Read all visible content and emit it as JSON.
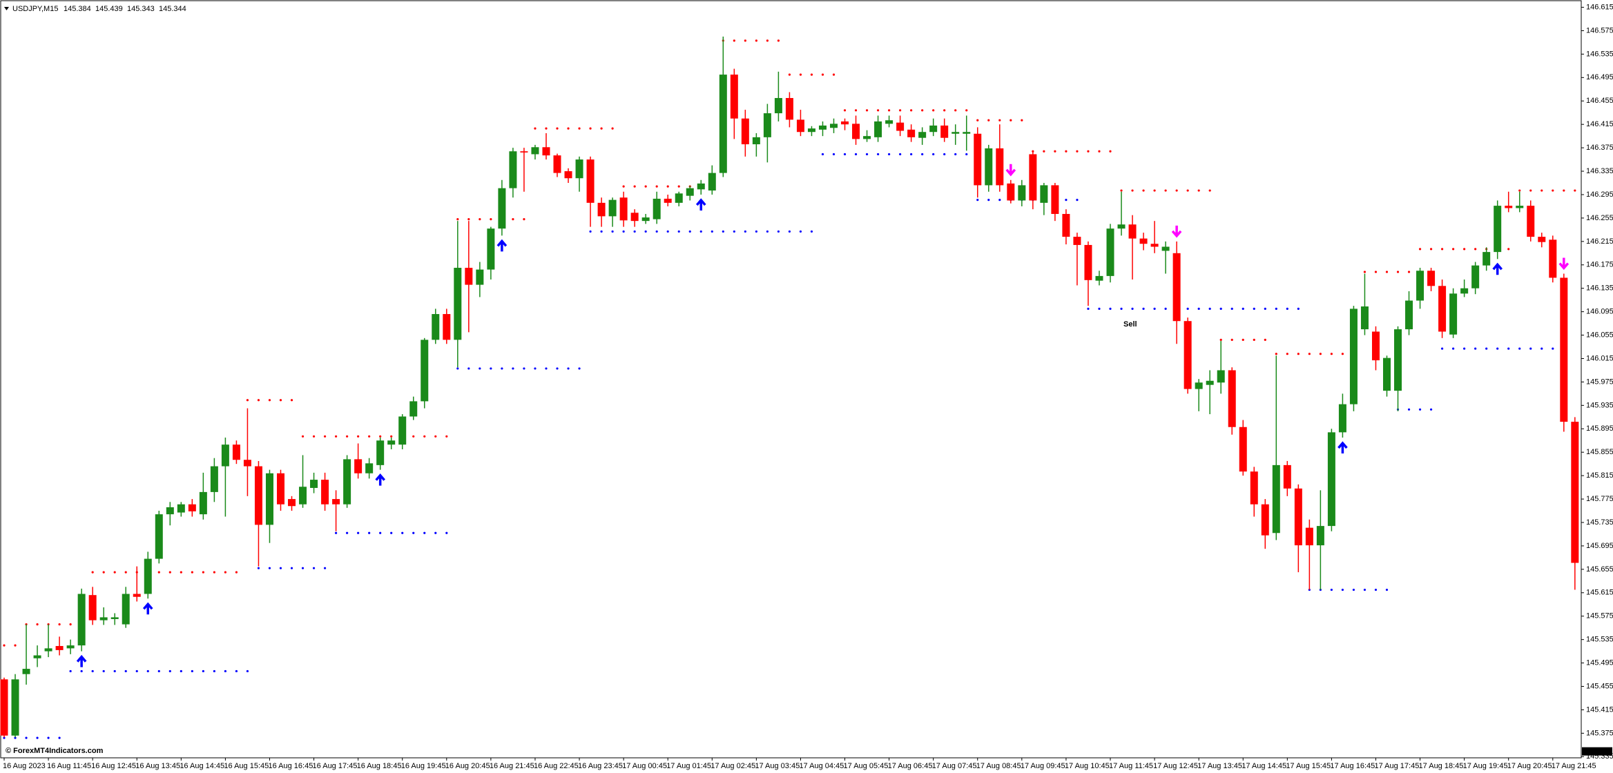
{
  "chart_data": {
    "type": "candlestick",
    "title": "USDJPY,M15",
    "quote": [
      145.384,
      145.439,
      145.343,
      145.344
    ],
    "up_color": "#1a8a1a",
    "down_color": "#ff0000",
    "ylim": [
      145.333,
      146.618
    ],
    "yticks": [
      145.335,
      145.375,
      145.415,
      145.455,
      145.495,
      145.535,
      145.575,
      145.615,
      145.655,
      145.695,
      145.735,
      145.775,
      145.815,
      145.855,
      145.895,
      145.935,
      145.975,
      146.015,
      146.055,
      146.095,
      146.135,
      146.175,
      146.215,
      146.255,
      146.295,
      146.335,
      146.375,
      146.415,
      146.455,
      146.495,
      146.535,
      146.575,
      146.615
    ],
    "xticks": [
      {
        "value": 0,
        "label": "16 Aug 2023"
      },
      {
        "value": 4,
        "label": "16 Aug 11:45"
      },
      {
        "value": 8,
        "label": "16 Aug 12:45"
      },
      {
        "value": 12,
        "label": "16 Aug 13:45"
      },
      {
        "value": 16,
        "label": "16 Aug 14:45"
      },
      {
        "value": 20,
        "label": "16 Aug 15:45"
      },
      {
        "value": 24,
        "label": "16 Aug 16:45"
      },
      {
        "value": 28,
        "label": "16 Aug 17:45"
      },
      {
        "value": 32,
        "label": "16 Aug 18:45"
      },
      {
        "value": 36,
        "label": "16 Aug 19:45"
      },
      {
        "value": 40,
        "label": "16 Aug 20:45"
      },
      {
        "value": 44,
        "label": "16 Aug 21:45"
      },
      {
        "value": 48,
        "label": "16 Aug 22:45"
      },
      {
        "value": 52,
        "label": "16 Aug 23:45"
      },
      {
        "value": 56,
        "label": "17 Aug 00:45"
      },
      {
        "value": 60,
        "label": "17 Aug 01:45"
      },
      {
        "value": 64,
        "label": "17 Aug 02:45"
      },
      {
        "value": 68,
        "label": "17 Aug 03:45"
      },
      {
        "value": 72,
        "label": "17 Aug 04:45"
      },
      {
        "value": 76,
        "label": "17 Aug 05:45"
      },
      {
        "value": 80,
        "label": "17 Aug 06:45"
      },
      {
        "value": 84,
        "label": "17 Aug 07:45"
      },
      {
        "value": 88,
        "label": "17 Aug 08:45"
      },
      {
        "value": 92,
        "label": "17 Aug 09:45"
      },
      {
        "value": 96,
        "label": "17 Aug 10:45"
      },
      {
        "value": 100,
        "label": "17 Aug 11:45"
      },
      {
        "value": 104,
        "label": "17 Aug 12:45"
      },
      {
        "value": 108,
        "label": "17 Aug 13:45"
      },
      {
        "value": 112,
        "label": "17 Aug 14:45"
      },
      {
        "value": 116,
        "label": "17 Aug 15:45"
      },
      {
        "value": 120,
        "label": "17 Aug 16:45"
      },
      {
        "value": 124,
        "label": "17 Aug 17:45"
      },
      {
        "value": 128,
        "label": "17 Aug 18:45"
      },
      {
        "value": 132,
        "label": "17 Aug 19:45"
      },
      {
        "value": 136,
        "label": "17 Aug 20:45"
      },
      {
        "value": 140,
        "label": "17 Aug 21:45"
      }
    ],
    "candles": [
      [
        145.467,
        145.47,
        145.368,
        145.371
      ],
      [
        145.371,
        145.476,
        145.368,
        145.467
      ],
      [
        145.476,
        145.561,
        145.458,
        145.485
      ],
      [
        145.503,
        145.525,
        145.488,
        145.508
      ],
      [
        145.515,
        145.561,
        145.505,
        145.52
      ],
      [
        145.524,
        145.54,
        145.508,
        145.517
      ],
      [
        145.52,
        145.535,
        145.51,
        145.525
      ],
      [
        145.525,
        145.622,
        145.515,
        145.613
      ],
      [
        145.611,
        145.625,
        145.56,
        145.568
      ],
      [
        145.568,
        145.59,
        145.56,
        145.573
      ],
      [
        145.57,
        145.58,
        145.56,
        145.573
      ],
      [
        145.561,
        145.625,
        145.555,
        145.613
      ],
      [
        145.613,
        145.66,
        145.6,
        145.608
      ],
      [
        145.613,
        145.685,
        145.605,
        145.673
      ],
      [
        145.673,
        145.755,
        145.665,
        145.749
      ],
      [
        145.749,
        145.77,
        145.73,
        145.761
      ],
      [
        145.752,
        145.77,
        145.745,
        145.766
      ],
      [
        145.766,
        145.775,
        145.745,
        145.754
      ],
      [
        145.749,
        145.82,
        145.74,
        145.787
      ],
      [
        145.787,
        145.845,
        145.77,
        145.831
      ],
      [
        145.831,
        145.88,
        145.745,
        145.868
      ],
      [
        145.868,
        145.875,
        145.835,
        145.842
      ],
      [
        145.842,
        145.93,
        145.78,
        145.831
      ],
      [
        145.831,
        145.84,
        145.66,
        145.731
      ],
      [
        145.731,
        145.825,
        145.7,
        145.819
      ],
      [
        145.819,
        145.825,
        145.755,
        145.766
      ],
      [
        145.775,
        145.78,
        145.755,
        145.763
      ],
      [
        145.766,
        145.85,
        145.76,
        145.796
      ],
      [
        145.794,
        145.82,
        145.785,
        145.808
      ],
      [
        145.808,
        145.82,
        145.755,
        145.766
      ],
      [
        145.775,
        145.79,
        145.72,
        145.766
      ],
      [
        145.766,
        145.85,
        145.76,
        145.843
      ],
      [
        145.843,
        145.87,
        145.81,
        145.819
      ],
      [
        145.819,
        145.845,
        145.81,
        145.836
      ],
      [
        145.833,
        145.88,
        145.825,
        145.875
      ],
      [
        145.868,
        145.88,
        145.86,
        145.875
      ],
      [
        145.868,
        145.92,
        145.86,
        145.916
      ],
      [
        145.916,
        145.95,
        145.91,
        145.942
      ],
      [
        145.942,
        146.05,
        145.93,
        146.047
      ],
      [
        146.047,
        146.1,
        146.04,
        146.091
      ],
      [
        146.091,
        146.1,
        146.04,
        146.047
      ],
      [
        146.047,
        146.25,
        146.0,
        146.17
      ],
      [
        146.17,
        146.25,
        146.06,
        146.141
      ],
      [
        146.141,
        146.18,
        146.12,
        146.167
      ],
      [
        146.167,
        146.24,
        146.15,
        146.237
      ],
      [
        146.237,
        146.32,
        146.225,
        146.306
      ],
      [
        146.306,
        146.375,
        146.29,
        146.369
      ],
      [
        146.369,
        146.375,
        146.3,
        146.367
      ],
      [
        146.364,
        146.38,
        146.355,
        146.376
      ],
      [
        146.376,
        146.4,
        146.355,
        146.362
      ],
      [
        146.362,
        146.365,
        146.325,
        146.332
      ],
      [
        146.335,
        146.34,
        146.315,
        146.323
      ],
      [
        146.323,
        146.36,
        146.3,
        146.355
      ],
      [
        146.355,
        146.36,
        146.24,
        146.281
      ],
      [
        146.281,
        146.29,
        146.24,
        146.258
      ],
      [
        146.258,
        146.29,
        146.24,
        146.286
      ],
      [
        146.29,
        146.3,
        146.24,
        146.251
      ],
      [
        146.264,
        146.27,
        146.24,
        146.25
      ],
      [
        146.25,
        146.262,
        146.245,
        146.256
      ],
      [
        146.253,
        146.3,
        146.245,
        146.288
      ],
      [
        146.288,
        146.295,
        146.275,
        146.281
      ],
      [
        146.281,
        146.3,
        146.275,
        146.297
      ],
      [
        146.293,
        146.31,
        146.285,
        146.306
      ],
      [
        146.304,
        146.32,
        146.295,
        146.314
      ],
      [
        146.302,
        146.345,
        146.295,
        146.332
      ],
      [
        146.332,
        146.565,
        146.325,
        146.5
      ],
      [
        146.5,
        146.51,
        146.39,
        146.425
      ],
      [
        146.425,
        146.44,
        146.36,
        146.381
      ],
      [
        146.381,
        146.4,
        146.36,
        146.393
      ],
      [
        146.393,
        146.45,
        146.35,
        146.434
      ],
      [
        146.434,
        146.505,
        146.42,
        146.46
      ],
      [
        146.46,
        146.47,
        146.41,
        146.423
      ],
      [
        146.423,
        146.44,
        146.395,
        146.402
      ],
      [
        146.402,
        146.412,
        146.395,
        146.408
      ],
      [
        146.406,
        146.42,
        146.395,
        146.413
      ],
      [
        146.409,
        146.425,
        146.4,
        146.416
      ],
      [
        146.42,
        146.425,
        146.405,
        146.415
      ],
      [
        146.416,
        146.43,
        146.38,
        146.39
      ],
      [
        146.39,
        146.405,
        146.385,
        146.395
      ],
      [
        146.393,
        146.43,
        146.385,
        146.42
      ],
      [
        146.416,
        146.43,
        146.41,
        146.422
      ],
      [
        146.418,
        146.43,
        146.395,
        146.404
      ],
      [
        146.406,
        146.415,
        146.385,
        146.393
      ],
      [
        146.392,
        146.41,
        146.38,
        146.402
      ],
      [
        146.402,
        146.425,
        146.395,
        146.413
      ],
      [
        146.413,
        146.425,
        146.385,
        146.392
      ],
      [
        146.399,
        146.415,
        146.38,
        146.402
      ],
      [
        146.399,
        146.43,
        146.37,
        146.402
      ],
      [
        146.399,
        146.41,
        146.29,
        146.311
      ],
      [
        146.311,
        146.38,
        146.3,
        146.374
      ],
      [
        146.374,
        146.415,
        146.3,
        146.311
      ],
      [
        146.314,
        146.32,
        146.28,
        146.285
      ],
      [
        146.285,
        146.32,
        146.275,
        146.311
      ],
      [
        146.364,
        146.37,
        146.27,
        146.285
      ],
      [
        146.281,
        146.315,
        146.26,
        146.311
      ],
      [
        146.311,
        146.315,
        146.25,
        146.262
      ],
      [
        146.262,
        146.27,
        146.21,
        146.223
      ],
      [
        146.223,
        146.23,
        146.14,
        146.209
      ],
      [
        146.209,
        146.215,
        146.105,
        146.149
      ],
      [
        146.148,
        146.165,
        146.14,
        146.156
      ],
      [
        146.156,
        146.245,
        146.145,
        146.237
      ],
      [
        146.237,
        146.3,
        146.225,
        146.244
      ],
      [
        146.244,
        146.26,
        146.15,
        146.22
      ],
      [
        146.22,
        146.23,
        146.2,
        146.211
      ],
      [
        146.211,
        146.25,
        146.195,
        146.206
      ],
      [
        146.199,
        146.215,
        146.16,
        146.206
      ],
      [
        146.195,
        146.215,
        146.04,
        146.079
      ],
      [
        146.079,
        146.085,
        145.955,
        145.963
      ],
      [
        145.963,
        145.98,
        145.925,
        145.974
      ],
      [
        145.97,
        145.995,
        145.92,
        145.977
      ],
      [
        145.974,
        146.045,
        145.955,
        145.995
      ],
      [
        145.995,
        146.0,
        145.885,
        145.898
      ],
      [
        145.898,
        145.91,
        145.815,
        145.822
      ],
      [
        145.822,
        145.83,
        145.745,
        145.766
      ],
      [
        145.766,
        145.775,
        145.69,
        145.713
      ],
      [
        145.717,
        146.02,
        145.705,
        145.833
      ],
      [
        145.833,
        145.84,
        145.78,
        145.793
      ],
      [
        145.793,
        145.8,
        145.65,
        145.696
      ],
      [
        145.726,
        145.74,
        145.62,
        145.696
      ],
      [
        145.696,
        145.79,
        145.62,
        145.729
      ],
      [
        145.729,
        145.895,
        145.72,
        145.889
      ],
      [
        145.889,
        145.955,
        145.88,
        145.937
      ],
      [
        145.937,
        146.105,
        145.925,
        146.1
      ],
      [
        146.065,
        146.16,
        146.055,
        146.104
      ],
      [
        146.061,
        146.07,
        145.995,
        146.012
      ],
      [
        145.96,
        146.02,
        145.95,
        146.016
      ],
      [
        145.96,
        146.07,
        145.925,
        146.065
      ],
      [
        146.065,
        146.13,
        146.055,
        146.114
      ],
      [
        146.114,
        146.17,
        146.1,
        146.165
      ],
      [
        146.165,
        146.17,
        146.13,
        146.139
      ],
      [
        146.139,
        146.15,
        146.05,
        146.061
      ],
      [
        146.056,
        146.135,
        146.05,
        146.126
      ],
      [
        146.126,
        146.15,
        146.12,
        146.135
      ],
      [
        146.135,
        146.18,
        146.125,
        146.174
      ],
      [
        146.174,
        146.205,
        146.165,
        146.197
      ],
      [
        146.197,
        146.285,
        146.185,
        146.276
      ],
      [
        146.276,
        146.3,
        146.265,
        146.272
      ],
      [
        146.272,
        146.3,
        146.265,
        146.276
      ],
      [
        146.276,
        146.285,
        146.215,
        146.223
      ],
      [
        146.223,
        146.23,
        146.205,
        146.214
      ],
      [
        146.218,
        146.225,
        146.145,
        146.153
      ],
      [
        146.153,
        146.16,
        145.89,
        145.907
      ],
      [
        145.907,
        145.915,
        145.62,
        145.666
      ]
    ],
    "resistance": {
      "color": "#ff0000",
      "levels": [
        {
          "value": 145.525,
          "from": 0,
          "to": 1
        },
        {
          "value": 145.561,
          "from": 2,
          "to": 6
        },
        {
          "value": 145.65,
          "from": 8,
          "to": 12
        },
        {
          "value": 145.65,
          "from": 14,
          "to": 21
        },
        {
          "value": 145.944,
          "from": 22,
          "to": 26
        },
        {
          "value": 145.882,
          "from": 27,
          "to": 40
        },
        {
          "value": 146.253,
          "from": 41,
          "to": 47
        },
        {
          "value": 146.408,
          "from": 48,
          "to": 55
        },
        {
          "value": 146.309,
          "from": 56,
          "to": 64
        },
        {
          "value": 146.558,
          "from": 65,
          "to": 70
        },
        {
          "value": 146.5,
          "from": 71,
          "to": 75
        },
        {
          "value": 146.439,
          "from": 76,
          "to": 87
        },
        {
          "value": 146.422,
          "from": 88,
          "to": 92
        },
        {
          "value": 146.369,
          "from": 93,
          "to": 100
        },
        {
          "value": 146.302,
          "from": 101,
          "to": 109
        },
        {
          "value": 146.047,
          "from": 110,
          "to": 114
        },
        {
          "value": 146.023,
          "from": 115,
          "to": 121
        },
        {
          "value": 146.163,
          "from": 123,
          "to": 127
        },
        {
          "value": 146.202,
          "from": 128,
          "to": 136
        },
        {
          "value": 146.302,
          "from": 137,
          "to": 142
        }
      ]
    },
    "support": {
      "color": "#0000ff",
      "levels": [
        {
          "value": 145.367,
          "from": 0,
          "to": 5
        },
        {
          "value": 145.481,
          "from": 6,
          "to": 22
        },
        {
          "value": 145.657,
          "from": 23,
          "to": 29
        },
        {
          "value": 145.717,
          "from": 30,
          "to": 40
        },
        {
          "value": 145.998,
          "from": 41,
          "to": 52
        },
        {
          "value": 146.232,
          "from": 53,
          "to": 73
        },
        {
          "value": 146.364,
          "from": 74,
          "to": 87
        },
        {
          "value": 146.286,
          "from": 88,
          "to": 97
        },
        {
          "value": 146.1,
          "from": 98,
          "to": 117
        },
        {
          "value": 145.62,
          "from": 118,
          "to": 125
        },
        {
          "value": 145.928,
          "from": 126,
          "to": 129
        },
        {
          "value": 146.032,
          "from": 130,
          "to": 141
        }
      ]
    },
    "buy_signals": {
      "color": "#0000ff",
      "bars": [
        7,
        13,
        34,
        45,
        63,
        121,
        135
      ]
    },
    "sell_signals": {
      "color": "#ff00ff",
      "bars": [
        91,
        106,
        141
      ]
    },
    "annotation": "Sell",
    "last_price": 145.344,
    "watermark": "© ForexMT4Indicators.com"
  }
}
